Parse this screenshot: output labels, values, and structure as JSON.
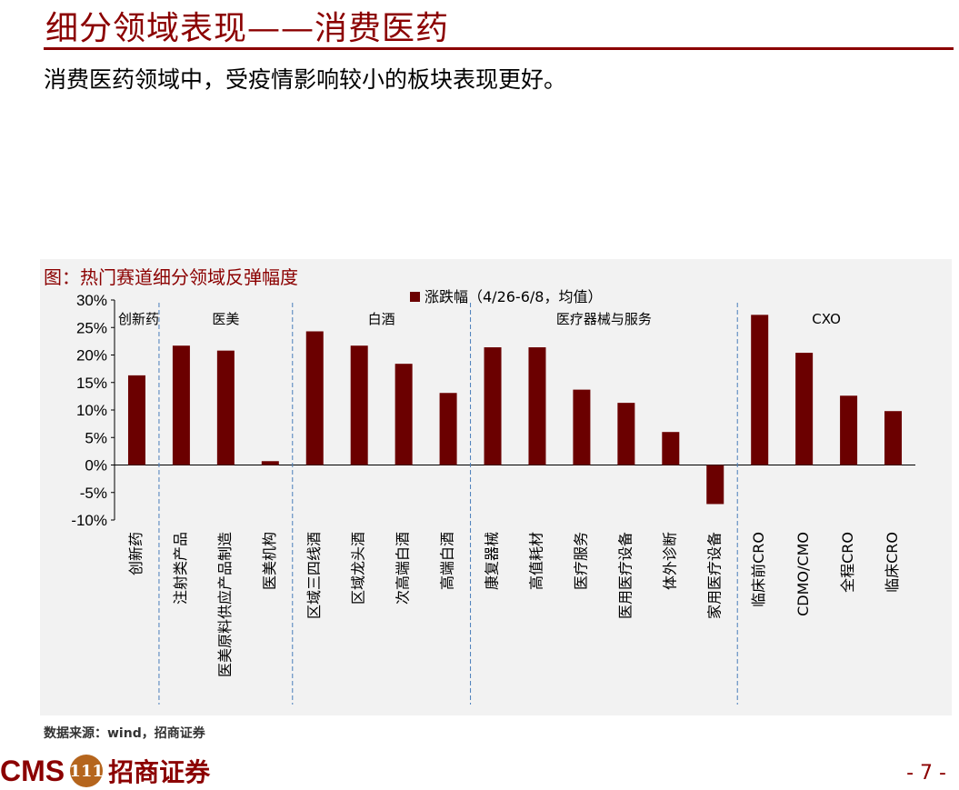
{
  "header": {
    "title": "细分领域表现——消费医药",
    "subtitle": "消费医药领域中，受疫情影响较小的板块表现更好。"
  },
  "figure": {
    "title": "图：热门赛道细分领域反弹幅度",
    "source": "数据来源：wind，招商证券"
  },
  "footer": {
    "logo_text": "CMS",
    "logo_badge": "111",
    "logo_cn": "招商证券",
    "page_number": "- 7 -"
  },
  "colors": {
    "brand": "#8b0000",
    "bar": "#6b0000",
    "panel_bg": "#f2f2f2",
    "divider": "#4a7ebb"
  },
  "chart_data": {
    "type": "bar",
    "categories": [
      "创新药",
      "注射类产品",
      "医美原料供应产品制造",
      "医美机构",
      "区域三四线酒",
      "区域龙头酒",
      "次高端白酒",
      "高端白酒",
      "康复器械",
      "高值耗材",
      "医疗服务",
      "医用医疗设备",
      "体外诊断",
      "家用医疗设备",
      "临床前CRO",
      "CDMO/CMO",
      "全程CRO",
      "临床CRO"
    ],
    "series": [
      {
        "name": "涨跌幅（4/26-6/8，均值）",
        "values": [
          16.3,
          21.7,
          20.8,
          0.7,
          24.3,
          21.7,
          18.4,
          13.1,
          21.4,
          21.4,
          13.7,
          11.3,
          6.0,
          -7.1,
          27.3,
          20.4,
          12.6,
          9.8
        ]
      }
    ],
    "ylim": [
      -10,
      30
    ],
    "yticks": [
      "-10%",
      "-5%",
      "0%",
      "5%",
      "10%",
      "15%",
      "20%",
      "25%",
      "30%"
    ],
    "groups": [
      {
        "label": "创新药",
        "start": 0,
        "end": 0
      },
      {
        "label": "医美",
        "start": 1,
        "end": 3
      },
      {
        "label": "白酒",
        "start": 4,
        "end": 7
      },
      {
        "label": "医疗器械与服务",
        "start": 8,
        "end": 13
      },
      {
        "label": "CXO",
        "start": 14,
        "end": 17
      }
    ],
    "legend": "top-center",
    "grid": false
  }
}
